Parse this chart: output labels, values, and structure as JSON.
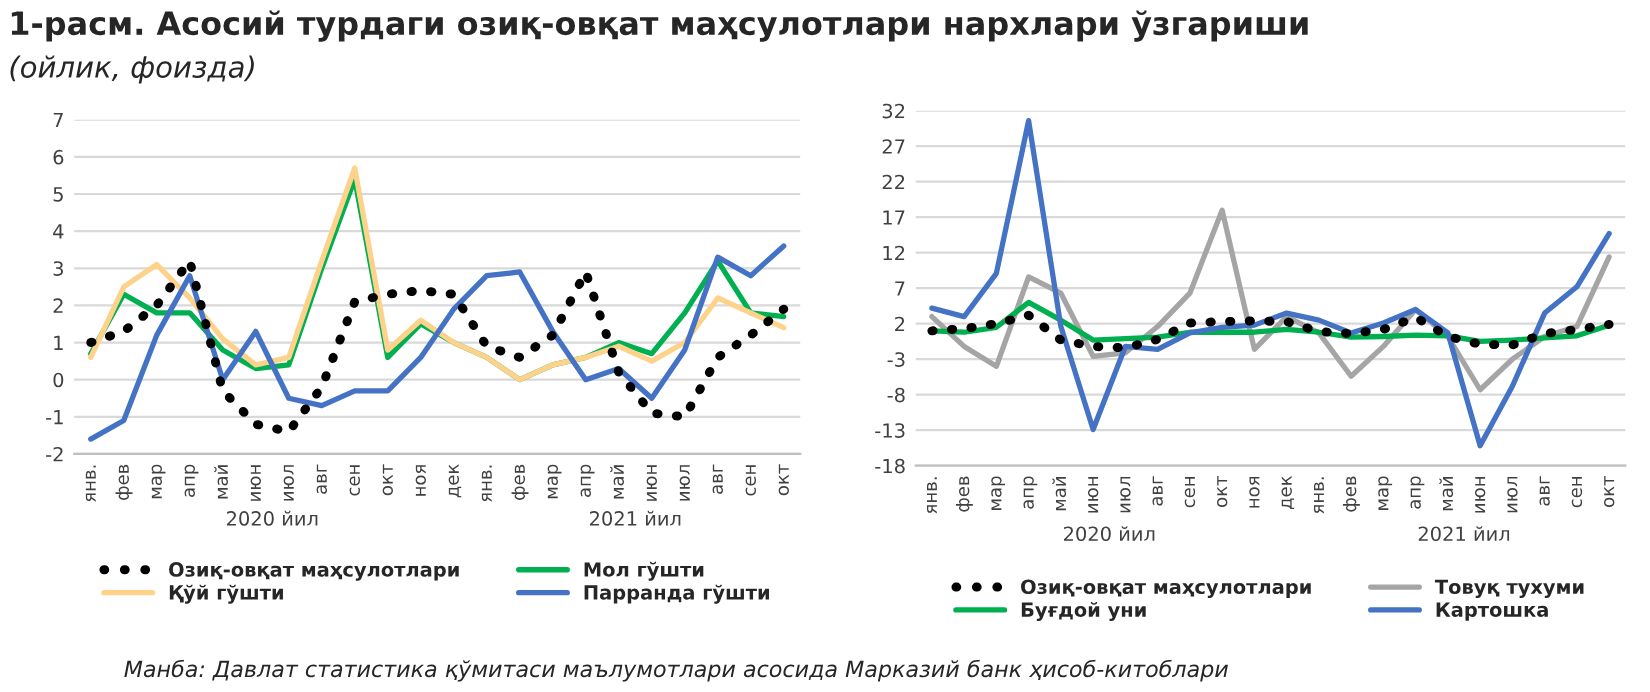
{
  "chart_data": [
    {
      "type": "line",
      "title": "1-расм. Асосий турдаги озиқ-овқат маҳсулотлари нархлари ўзгариши",
      "subtitle": "(ойлик, фоизда)",
      "categories": [
        "янв.",
        "фев",
        "мар",
        "апр",
        "май",
        "июн",
        "июл",
        "авг",
        "сен",
        "окт",
        "ноя",
        "дек",
        "янв.",
        "фев",
        "мар",
        "апр",
        "май",
        "июн",
        "июл",
        "авг",
        "сен",
        "окт"
      ],
      "series": [
        {
          "name": "Озиқ-овқат маҳсулотлари",
          "color": "#000000",
          "line_style": "dotted",
          "values": [
            1.0,
            1.3,
            2.0,
            3.2,
            -0.3,
            -1.2,
            -1.4,
            -0.2,
            2.1,
            2.3,
            2.4,
            2.3,
            0.9,
            0.6,
            1.2,
            2.9,
            0.2,
            -0.9,
            -1.0,
            0.6,
            1.2,
            1.9
          ]
        },
        {
          "name": "Мол гўшти",
          "color": "#00b050",
          "values": [
            0.7,
            2.3,
            1.8,
            1.8,
            0.8,
            0.3,
            0.4,
            3.0,
            5.4,
            0.6,
            1.5,
            1.0,
            0.6,
            0.0,
            0.4,
            0.6,
            1.0,
            0.7,
            1.8,
            3.2,
            1.8,
            1.7
          ]
        },
        {
          "name": "Қўй гўшти",
          "color": "#ffd28c",
          "values": [
            0.6,
            2.5,
            3.1,
            2.2,
            1.1,
            0.4,
            0.6,
            3.2,
            5.7,
            0.8,
            1.6,
            1.0,
            0.6,
            0.0,
            0.4,
            0.6,
            0.9,
            0.5,
            1.0,
            2.2,
            1.8,
            1.4
          ]
        },
        {
          "name": "Парранда гўшти",
          "color": "#4472c4",
          "values": [
            -1.6,
            -1.1,
            1.2,
            2.8,
            0.0,
            1.3,
            -0.5,
            -0.7,
            -0.3,
            -0.3,
            0.6,
            1.9,
            2.8,
            2.9,
            1.3,
            0.0,
            0.3,
            -0.5,
            0.8,
            3.3,
            2.8,
            3.6
          ]
        }
      ],
      "ylim": [
        -2,
        7
      ],
      "yticks": [
        -2,
        -1,
        0,
        1,
        2,
        3,
        4,
        5,
        6,
        7
      ],
      "grid": "y",
      "legend": "bottom",
      "annotations": [
        "2020 йил",
        "2021 йил",
        "Манба: Давлат статистика қўмитаси маълумотлари асосида Марказий банк ҳисоб-китоблари"
      ]
    },
    {
      "type": "line",
      "categories": [
        "янв.",
        "фев",
        "мар",
        "апр",
        "май",
        "июн",
        "июл",
        "авг",
        "сен",
        "окт",
        "ноя",
        "дек",
        "янв.",
        "фев",
        "мар",
        "апр",
        "май",
        "июн",
        "июл",
        "авг",
        "сен",
        "окт"
      ],
      "series": [
        {
          "name": "Озиқ-овқат маҳсулотлари",
          "color": "#000000",
          "line_style": "dotted",
          "values": [
            1.0,
            1.3,
            2.0,
            3.2,
            -0.3,
            -1.2,
            -1.4,
            -0.2,
            2.1,
            2.3,
            2.4,
            2.3,
            0.9,
            0.6,
            1.2,
            2.9,
            0.2,
            -0.9,
            -1.0,
            0.6,
            1.2,
            1.9
          ]
        },
        {
          "name": "Товуқ тухуми",
          "color": "#a5a5a5",
          "values": [
            3.0,
            -1.2,
            -4.0,
            8.6,
            6.3,
            -2.6,
            -2.1,
            1.6,
            6.3,
            18.0,
            -1.6,
            3.0,
            0.7,
            -5.4,
            -1.2,
            4.0,
            0.2,
            -7.3,
            -3.0,
            0.2,
            1.6,
            11.4
          ]
        },
        {
          "name": "Буғдой уни",
          "color": "#00b050",
          "values": [
            1.0,
            0.8,
            1.5,
            5.0,
            2.5,
            -0.3,
            -0.1,
            0.1,
            0.8,
            0.8,
            0.8,
            1.2,
            0.8,
            0.1,
            0.2,
            0.4,
            0.3,
            -0.5,
            -0.3,
            0.0,
            0.3,
            1.8
          ]
        },
        {
          "name": "Картошка",
          "color": "#4472c4",
          "values": [
            4.2,
            3.0,
            9.1,
            30.6,
            1.6,
            -12.9,
            -1.2,
            -1.6,
            0.7,
            1.5,
            1.8,
            3.5,
            2.5,
            0.7,
            2.1,
            4.0,
            0.7,
            -15.2,
            -6.8,
            3.5,
            7.2,
            14.7
          ]
        }
      ],
      "ylim": [
        -18,
        32
      ],
      "yticks": [
        -18,
        -13,
        -8,
        -3,
        2,
        7,
        12,
        17,
        22,
        27,
        32
      ],
      "grid": "y",
      "legend": "bottom",
      "annotations": [
        "2020 йил",
        "2021 йил"
      ]
    }
  ]
}
